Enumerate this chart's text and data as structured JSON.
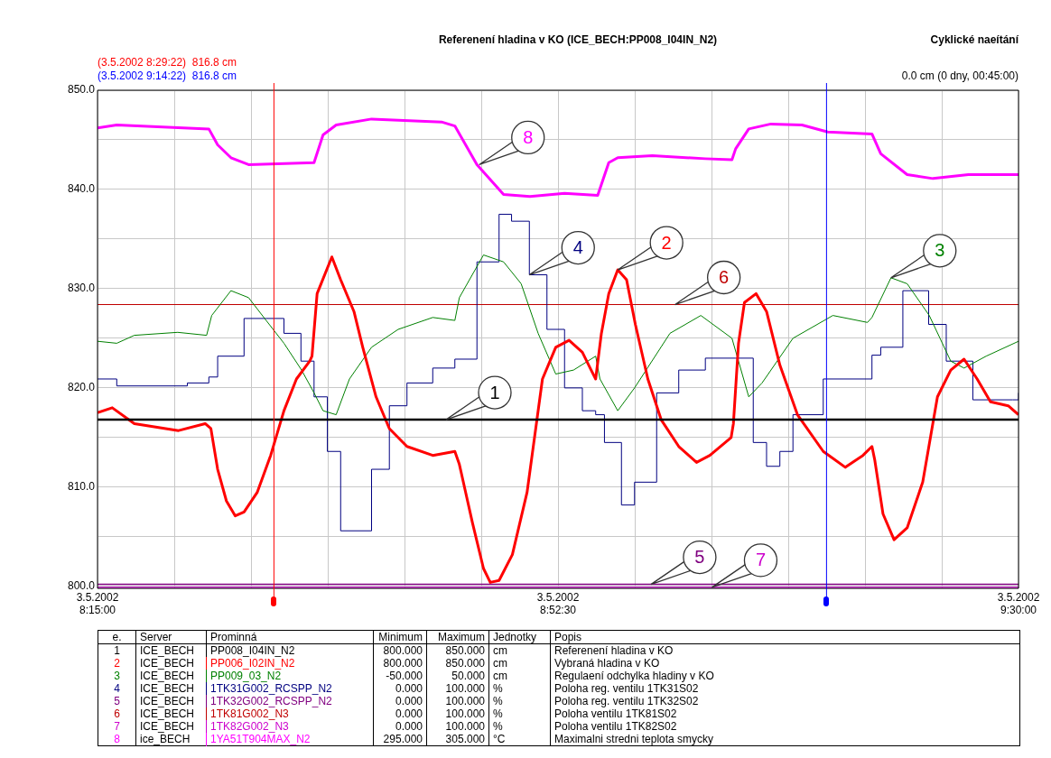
{
  "chart_data": {
    "type": "line",
    "title": "Referenení hladina v KO (ICE_BECH:PP008_I04IN_N2)",
    "xlim": [
      "2002-05-03T08:15:00",
      "2002-05-03T09:30:00"
    ],
    "xticks": [
      {
        "value": "2002-05-03T08:15:00",
        "label": "3.5.2002 8:15:00"
      },
      {
        "value": "2002-05-03T08:21:15",
        "label": null
      },
      {
        "value": "2002-05-03T08:27:30",
        "label": null
      },
      {
        "value": "2002-05-03T08:33:45",
        "label": null
      },
      {
        "value": "2002-05-03T08:40:00",
        "label": null
      },
      {
        "value": "2002-05-03T08:46:15",
        "label": null
      },
      {
        "value": "2002-05-03T08:52:30",
        "label": "3.5.2002 8:52:30"
      },
      {
        "value": "2002-05-03T08:58:45",
        "label": null
      },
      {
        "value": "2002-05-03T09:05:00",
        "label": null
      },
      {
        "value": "2002-05-03T09:11:15",
        "label": null
      },
      {
        "value": "2002-05-03T09:17:30",
        "label": null
      },
      {
        "value": "2002-05-03T09:23:45",
        "label": null
      },
      {
        "value": "2002-05-03T09:30:00",
        "label": "3.5.2002 9:30:00"
      }
    ],
    "ylim": [
      799.8,
      850
    ],
    "yticks": [
      {
        "value": 800,
        "label": "800.0"
      },
      {
        "value": 805,
        "label": null
      },
      {
        "value": 810,
        "label": "810.0"
      },
      {
        "value": 815,
        "label": null
      },
      {
        "value": 820,
        "label": "820.0"
      },
      {
        "value": 825,
        "label": null
      },
      {
        "value": 830,
        "label": "830.0"
      },
      {
        "value": 835,
        "label": null
      },
      {
        "value": 840,
        "label": "840.0"
      },
      {
        "value": 845,
        "label": null
      },
      {
        "value": 850,
        "label": "850.0"
      }
    ],
    "grid": true,
    "legend": "bottom",
    "series": [
      {
        "name": "PP008_I04IN_N2",
        "color": "#000000",
        "x": [
          "2002-05-03T08:15:00",
          "2002-05-03T09:30:00"
        ],
        "values": [
          816.8,
          816.8
        ]
      },
      {
        "name": "PP006_I02IN_N2",
        "color": "#ff0000",
        "x": [
          "2002-05-03T08:15:00",
          "2002-05-03T08:16:12",
          "2002-05-03T08:18:00",
          "2002-05-03T08:21:36",
          "2002-05-03T08:23:46",
          "2002-05-03T08:24:14",
          "2002-05-03T08:24:47",
          "2002-05-03T08:25:30",
          "2002-05-03T08:26:13",
          "2002-05-03T08:26:56",
          "2002-05-03T08:28:01",
          "2002-05-03T08:29:06",
          "2002-05-03T08:30:11",
          "2002-05-03T08:31:12",
          "2002-05-03T08:32:17",
          "2002-05-03T08:32:28",
          "2002-05-03T08:32:53",
          "2002-05-03T08:34:05",
          "2002-05-03T08:34:48",
          "2002-05-03T08:35:53",
          "2002-05-03T08:36:36",
          "2002-05-03T08:37:41",
          "2002-05-03T08:38:46",
          "2002-05-03T08:40:12",
          "2002-05-03T08:42:18",
          "2002-05-03T08:44:06",
          "2002-05-03T08:44:28",
          "2002-05-03T08:45:32",
          "2002-05-03T08:46:26",
          "2002-05-03T08:46:59",
          "2002-05-03T08:47:42",
          "2002-05-03T08:48:47",
          "2002-05-03T08:49:59",
          "2002-05-03T08:51:14",
          "2002-05-03T08:52:19",
          "2002-05-03T08:53:24",
          "2002-05-03T08:54:29",
          "2002-05-03T08:55:12",
          "2002-05-03T08:55:34",
          "2002-05-03T08:56:02",
          "2002-05-03T08:56:38",
          "2002-05-03T08:57:22",
          "2002-05-03T08:58:05",
          "2002-05-03T08:58:48",
          "2002-05-03T08:59:49",
          "2002-05-03T09:00:54",
          "2002-05-03T09:02:20",
          "2002-05-03T09:03:47",
          "2002-05-03T09:04:52",
          "2002-05-03T09:06:36",
          "2002-05-03T09:06:47",
          "2002-05-03T09:07:12",
          "2002-05-03T09:07:41",
          "2002-05-03T09:08:38",
          "2002-05-03T09:09:29",
          "2002-05-03T09:10:34",
          "2002-05-03T09:12:00",
          "2002-05-03T09:14:06",
          "2002-05-03T09:15:54",
          "2002-05-03T09:17:20",
          "2002-05-03T09:18:04",
          "2002-05-03T09:18:18",
          "2002-05-03T09:18:58",
          "2002-05-03T09:19:52",
          "2002-05-03T09:20:56",
          "2002-05-03T09:22:12",
          "2002-05-03T09:23:24",
          "2002-05-03T09:24:29",
          "2002-05-03T09:25:34",
          "2002-05-03T09:26:38",
          "2002-05-03T09:27:43",
          "2002-05-03T09:29:10",
          "2002-05-03T09:30:00"
        ],
        "values": [
          817.5,
          818.0,
          816.4,
          815.7,
          816.4,
          815.9,
          811.8,
          808.6,
          807.1,
          807.5,
          809.5,
          813.2,
          817.7,
          820.9,
          822.7,
          823.2,
          829.5,
          833.2,
          830.9,
          827.7,
          824.1,
          819.1,
          815.9,
          814.1,
          813.2,
          813.6,
          812.3,
          806.4,
          801.8,
          800.4,
          800.6,
          803.2,
          809.5,
          820.9,
          824.1,
          824.8,
          823.6,
          821.8,
          820.9,
          825.5,
          829.5,
          831.9,
          830.9,
          826.4,
          820.9,
          816.8,
          814.1,
          812.5,
          813.2,
          815.0,
          816.4,
          824.5,
          828.6,
          829.5,
          827.7,
          822.3,
          817.3,
          813.6,
          812.0,
          813.2,
          814.1,
          812.7,
          807.3,
          804.7,
          805.9,
          810.5,
          819.1,
          821.8,
          822.9,
          820.9,
          818.6,
          818.2,
          817.3
        ]
      },
      {
        "name": "PP009_03_N2",
        "color": "#008000",
        "x": [
          "2002-05-03T08:15:00",
          "2002-05-03T08:16:34",
          "2002-05-03T08:18:00",
          "2002-05-03T08:21:32",
          "2002-05-03T08:23:53",
          "2002-05-03T08:24:18",
          "2002-05-03T08:25:52",
          "2002-05-03T08:27:18",
          "2002-05-03T08:28:44",
          "2002-05-03T08:30:11",
          "2002-05-03T08:31:37",
          "2002-05-03T08:32:38",
          "2002-05-03T08:33:22",
          "2002-05-03T08:34:26",
          "2002-05-03T08:35:31",
          "2002-05-03T08:37:19",
          "2002-05-03T08:39:29",
          "2002-05-03T08:42:18",
          "2002-05-03T08:44:06",
          "2002-05-03T08:44:28",
          "2002-05-03T08:46:26",
          "2002-05-03T08:48:04",
          "2002-05-03T08:49:30",
          "2002-05-03T08:50:53",
          "2002-05-03T08:52:19",
          "2002-05-03T08:53:46",
          "2002-05-03T08:55:34",
          "2002-05-03T08:55:55",
          "2002-05-03T08:57:22",
          "2002-05-03T08:58:44",
          "2002-05-03T09:01:37",
          "2002-05-03T09:04:08",
          "2002-05-03T09:06:40",
          "2002-05-03T09:08:02",
          "2002-05-03T09:09:07",
          "2002-05-03T09:11:38",
          "2002-05-03T09:14:53",
          "2002-05-03T09:17:42",
          "2002-05-03T09:18:04",
          "2002-05-03T09:19:37",
          "2002-05-03T09:20:56",
          "2002-05-03T09:22:44",
          "2002-05-03T09:24:29",
          "2002-05-03T09:25:34",
          "2002-05-03T09:27:22",
          "2002-05-03T09:30:00"
        ],
        "values": [
          824.7,
          824.5,
          825.3,
          825.6,
          825.3,
          827.3,
          829.8,
          829.1,
          826.8,
          824.5,
          821.8,
          819.5,
          817.7,
          817.3,
          820.9,
          824.1,
          825.9,
          827.1,
          826.8,
          829.1,
          833.4,
          832.7,
          830.5,
          825.5,
          821.4,
          821.8,
          823.2,
          820.9,
          817.7,
          820.0,
          825.5,
          827.3,
          825.0,
          819.1,
          820.5,
          825.0,
          827.3,
          826.6,
          827.1,
          831.1,
          830.5,
          827.3,
          822.7,
          822.0,
          823.2,
          824.7
        ]
      },
      {
        "name": "1TK31G002_RCSPP_N2",
        "color": "#000080",
        "type": "step",
        "x": [
          "2002-05-03T08:15:00",
          "2002-05-03T08:16:34",
          "2002-05-03T08:22:19",
          "2002-05-03T08:24:04",
          "2002-05-03T08:24:47",
          "2002-05-03T08:26:56",
          "2002-05-03T08:28:44",
          "2002-05-03T08:30:11",
          "2002-05-03T08:31:34",
          "2002-05-03T08:32:38",
          "2002-05-03T08:33:43",
          "2002-05-03T08:34:48",
          "2002-05-03T08:35:53",
          "2002-05-03T08:37:19",
          "2002-05-03T08:38:46",
          "2002-05-03T08:40:12",
          "2002-05-03T08:42:18",
          "2002-05-03T08:44:06",
          "2002-05-03T08:45:54",
          "2002-05-03T08:47:42",
          "2002-05-03T08:48:43",
          "2002-05-03T08:50:10",
          "2002-05-03T08:51:36",
          "2002-05-03T08:53:02",
          "2002-05-03T08:54:29",
          "2002-05-03T08:55:34",
          "2002-05-03T08:56:17",
          "2002-05-03T08:57:40",
          "2002-05-03T08:58:44",
          "2002-05-03T09:00:32",
          "2002-05-03T09:02:20",
          "2002-05-03T09:04:30",
          "2002-05-03T09:06:58",
          "2002-05-03T09:08:24",
          "2002-05-03T09:09:29",
          "2002-05-03T09:10:34",
          "2002-05-03T09:11:38",
          "2002-05-03T09:14:06",
          "2002-05-03T09:18:04",
          "2002-05-03T09:18:47",
          "2002-05-03T09:20:35",
          "2002-05-03T09:21:18",
          "2002-05-03T09:22:41",
          "2002-05-03T09:24:07",
          "2002-05-03T09:26:17",
          "2002-05-03T09:29:31",
          "2002-05-03T09:30:00"
        ],
        "values": [
          820.9,
          820.2,
          820.5,
          821.1,
          823.2,
          827.0,
          827.0,
          825.5,
          822.7,
          819.1,
          813.6,
          805.6,
          805.6,
          811.8,
          818.2,
          820.5,
          822.0,
          822.9,
          832.7,
          837.5,
          836.8,
          831.4,
          825.9,
          820.0,
          817.7,
          817.3,
          814.5,
          808.2,
          810.5,
          819.5,
          821.8,
          823.0,
          823.0,
          814.5,
          812.1,
          813.6,
          817.3,
          820.9,
          823.3,
          824.1,
          829.8,
          829.8,
          826.4,
          822.7,
          818.8,
          818.8,
          819.5
        ]
      },
      {
        "name": "1TK32G002_RCSPP_N2",
        "color": "#800080",
        "x": [
          "2002-05-03T08:15:00",
          "2002-05-03T09:30:00"
        ],
        "values": [
          800.2,
          800.2
        ]
      },
      {
        "name": "1TK81G002_N3",
        "color": "#c00000",
        "x": [
          "2002-05-03T08:15:00",
          "2002-05-03T09:30:00"
        ],
        "values": [
          828.4,
          828.4
        ]
      },
      {
        "name": "1TK82G002_N3",
        "color": "#cc00cc",
        "x": [
          "2002-05-03T08:15:00",
          "2002-05-03T09:30:00"
        ],
        "values": [
          799.9,
          799.9
        ]
      },
      {
        "name": "1YA51T904MAX_N2",
        "color": "#ff00ff",
        "x": [
          "2002-05-03T08:15:00",
          "2002-05-03T08:16:34",
          "2002-05-03T08:24:04",
          "2002-05-03T08:24:47",
          "2002-05-03T08:25:52",
          "2002-05-03T08:27:18",
          "2002-05-03T08:32:38",
          "2002-05-03T08:33:22",
          "2002-05-03T08:34:26",
          "2002-05-03T08:37:19",
          "2002-05-03T08:43:01",
          "2002-05-03T08:44:06",
          "2002-05-03T08:45:54",
          "2002-05-03T08:48:04",
          "2002-05-03T08:50:13",
          "2002-05-03T08:53:02",
          "2002-05-03T08:55:44",
          "2002-05-03T08:56:38",
          "2002-05-03T08:57:22",
          "2002-05-03T09:00:11",
          "2002-05-03T09:04:30",
          "2002-05-03T09:06:40",
          "2002-05-03T09:06:58",
          "2002-05-03T09:08:02",
          "2002-05-03T09:09:50",
          "2002-05-03T09:12:22",
          "2002-05-03T09:14:28",
          "2002-05-03T09:18:04",
          "2002-05-03T09:18:47",
          "2002-05-03T09:20:56",
          "2002-05-03T09:23:02",
          "2002-05-03T09:25:55",
          "2002-05-03T09:30:00"
        ],
        "values": [
          846.2,
          846.5,
          846.1,
          844.5,
          843.2,
          842.5,
          842.7,
          845.5,
          846.5,
          847.1,
          846.8,
          846.4,
          842.5,
          839.5,
          839.3,
          839.6,
          839.4,
          842.7,
          843.2,
          843.4,
          843.1,
          843.0,
          844.1,
          846.1,
          846.6,
          846.5,
          845.8,
          845.6,
          843.6,
          841.5,
          841.1,
          841.5,
          841.5
        ]
      }
    ],
    "ref_lines": [
      {
        "axis": "x",
        "value": "2002-05-03T08:29:22",
        "label": "(3.5.2002 8:29:22)  816.8 cm",
        "color": "#ff0000"
      },
      {
        "axis": "x",
        "value": "2002-05-03T09:14:22",
        "label": "(3.5.2002 9:14:22)  816.8 cm",
        "color": "#0000ff"
      }
    ],
    "annotations": [
      "Cyklické naeítání",
      "0.0 cm (0 dny, 00:45:00)",
      {
        "text": "1",
        "x": "2002-05-03T08:43:23",
        "y": 816.8
      },
      {
        "text": "2",
        "x": "2002-05-03T08:57:22",
        "y": 831.9
      },
      {
        "text": "3",
        "x": "2002-05-03T09:19:37",
        "y": 831.1
      },
      {
        "text": "4",
        "x": "2002-05-03T08:50:10",
        "y": 831.4
      },
      {
        "text": "5",
        "x": "2002-05-03T09:00:04",
        "y": 800.2
      },
      {
        "text": "6",
        "x": "2002-05-03T09:02:02",
        "y": 828.4
      },
      {
        "text": "7",
        "x": "2002-05-03T09:05:02",
        "y": 799.9
      },
      {
        "text": "8",
        "x": "2002-05-03T08:46:05",
        "y": 842.5
      },
      "e.",
      "Server",
      "Prominná",
      "Minimum",
      "Maximum",
      "Jednotky",
      "Popis",
      "1",
      "ICE_BECH",
      "800.000",
      "850.000",
      "cm",
      "Referenení hladina v KO",
      "2",
      "ICE_BECH",
      "800.000",
      "850.000",
      "cm",
      "Vybraná hladina v KO",
      "3",
      "ICE_BECH",
      "-50.000",
      "50.000",
      "cm",
      "Regulaení odchylka hladiny v KO",
      "4",
      "ICE_BECH",
      "0.000",
      "100.000",
      "%",
      "Poloha reg. ventilu 1TK31S02",
      "5",
      "ICE_BECH",
      "0.000",
      "100.000",
      "%",
      "Poloha reg. ventilu 1TK32S02",
      "6",
      "ICE_BECH",
      "0.000",
      "100.000",
      "%",
      "Poloha ventilu 1TK81S02",
      "7",
      "ICE_BECH",
      "0.000",
      "100.000",
      "%",
      "Poloha ventilu 1TK82S02",
      "8",
      "ice_BECH",
      "295.000",
      "305.000",
      "°C",
      "Maximalni stredni teplota smycky"
    ]
  }
}
